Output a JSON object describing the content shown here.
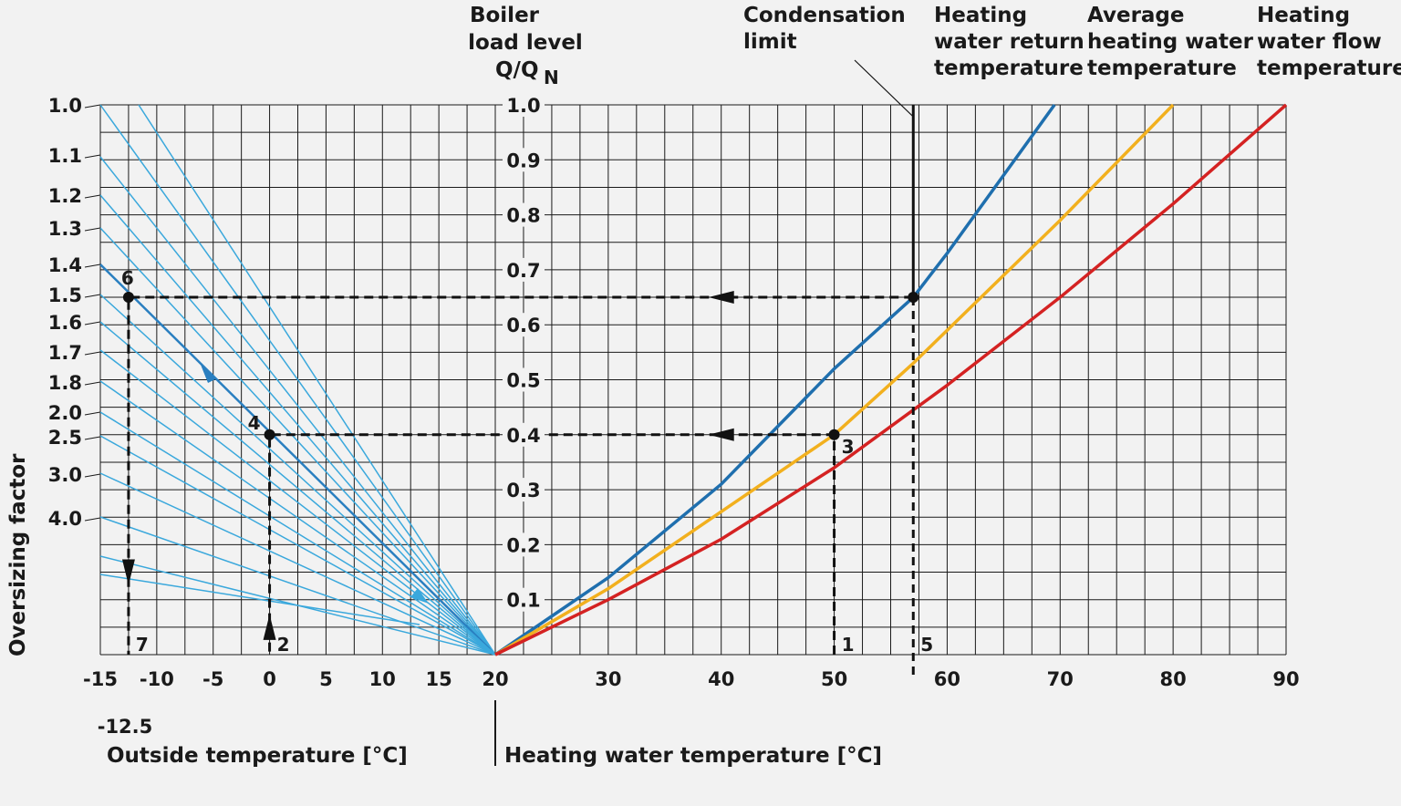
{
  "chart_data": {
    "type": "line",
    "headers": {
      "boiler_load_line1": "Boiler",
      "boiler_load_line2": "load level",
      "boiler_load_line3": "Q/Q",
      "boiler_load_sub": "N",
      "condensation_line1": "Condensation",
      "condensation_line2": "limit",
      "return_line1": "Heating",
      "return_line2": "water return",
      "return_line3": "temperature",
      "average_line1": "Average",
      "average_line2": "heating water",
      "average_line3": "temperature",
      "flow_line1": "Heating",
      "flow_line2": "water flow",
      "flow_line3": "temperature"
    },
    "left_ylabel": "Oversizing factor",
    "left_xlabel": "Outside temperature [°C]",
    "right_xlabel": "Heating water temperature [°C]",
    "left_xticks": [
      "-15",
      "-10",
      "-5",
      "0",
      "5",
      "10",
      "15",
      "20"
    ],
    "left_xtick_values": [
      -15,
      -10,
      -5,
      0,
      5,
      10,
      15,
      20
    ],
    "extra_xtick_label": "-12.5",
    "right_xticks": [
      "30",
      "40",
      "50",
      "60",
      "70",
      "80",
      "90"
    ],
    "right_xtick_values": [
      30,
      40,
      50,
      60,
      70,
      80,
      90
    ],
    "yticks": [
      "1.0",
      "0.9",
      "0.8",
      "0.7",
      "0.6",
      "0.5",
      "0.4",
      "0.3",
      "0.2",
      "0.1"
    ],
    "ytick_values": [
      1.0,
      0.9,
      0.8,
      0.7,
      0.6,
      0.5,
      0.4,
      0.3,
      0.2,
      0.1
    ],
    "ylim": [
      0,
      1.0
    ],
    "xlim_outside": [
      -15,
      20
    ],
    "xlim_water": [
      20,
      90
    ],
    "oversizing_factors": [
      {
        "label": "1.0",
        "value": 1.0
      },
      {
        "label": "1.1",
        "value": 1.1
      },
      {
        "label": "1.2",
        "value": 1.2
      },
      {
        "label": "1.3",
        "value": 1.3
      },
      {
        "label": "1.4",
        "value": 1.4
      },
      {
        "label": "1.5",
        "value": 1.5
      },
      {
        "label": "1.6",
        "value": 1.6
      },
      {
        "label": "1.7",
        "value": 1.7
      },
      {
        "label": "1.8",
        "value": 1.8
      },
      {
        "label": "2.0",
        "value": 2.0
      },
      {
        "label": "2.5",
        "value": 2.5
      },
      {
        "label": "3.0",
        "value": 3.0
      },
      {
        "label": "4.0",
        "value": 4.0
      }
    ],
    "series": [
      {
        "name": "Heating water return temperature",
        "color": "#1f6fae",
        "points": [
          [
            20,
            0
          ],
          [
            30,
            0.14
          ],
          [
            40,
            0.31
          ],
          [
            50,
            0.52
          ],
          [
            57,
            0.65
          ],
          [
            60,
            0.73
          ],
          [
            69.5,
            1.0
          ]
        ]
      },
      {
        "name": "Average heating water temperature",
        "color": "#f2b01e",
        "points": [
          [
            20,
            0
          ],
          [
            30,
            0.12
          ],
          [
            40,
            0.26
          ],
          [
            50,
            0.4
          ],
          [
            57,
            0.53
          ],
          [
            60,
            0.59
          ],
          [
            70,
            0.79
          ],
          [
            80,
            1.0
          ]
        ]
      },
      {
        "name": "Heating water flow temperature",
        "color": "#d42222",
        "points": [
          [
            20,
            0
          ],
          [
            30,
            0.1
          ],
          [
            40,
            0.21
          ],
          [
            50,
            0.34
          ],
          [
            60,
            0.49
          ],
          [
            70,
            0.65
          ],
          [
            80,
            0.82
          ],
          [
            90,
            1.0
          ]
        ]
      }
    ],
    "condensation_limit": 57,
    "example_paths": [
      {
        "points": [
          [
            50,
            0
          ],
          [
            50,
            0.4
          ],
          [
            0,
            0.4
          ],
          [
            0,
            0
          ]
        ],
        "arrows": [
          [
            40,
            0.4,
            "left"
          ],
          [
            0,
            0.05,
            "up"
          ]
        ]
      },
      {
        "points": [
          [
            57,
            0.65
          ],
          [
            -12.5,
            0.65
          ],
          [
            -12.5,
            0
          ]
        ],
        "arrows": [
          [
            40,
            0.65,
            "left"
          ],
          [
            -12.5,
            0.15,
            "down"
          ]
        ]
      }
    ],
    "markers": [
      {
        "label": "1",
        "x": 50,
        "y": 0
      },
      {
        "label": "2",
        "x": 0,
        "y": 0
      },
      {
        "label": "3",
        "x": 50,
        "y": 0.4
      },
      {
        "label": "4",
        "x": 0,
        "y": 0.4
      },
      {
        "label": "5",
        "x": 57,
        "y": 0
      },
      {
        "label": "6",
        "x": -12.5,
        "y": 0.65
      },
      {
        "label": "7",
        "x": -12.5,
        "y": 0
      }
    ],
    "colors": {
      "grid": "#1a1a1a",
      "oversizing_lines": "#3aa8dc",
      "highlight_line": "#2a7fc0",
      "path": "#111111"
    }
  }
}
